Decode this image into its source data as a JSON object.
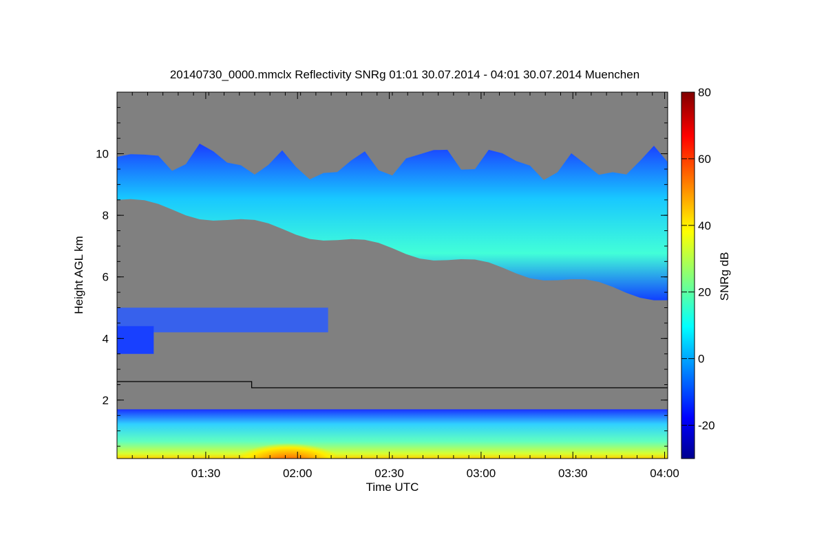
{
  "chart_data": {
    "type": "heatmap",
    "title": "20140730_0000.mmclx Reflectivity SNRg   01:01 30.07.2014 - 04:01 30.07.2014 Muenchen",
    "xlabel": "Time UTC",
    "ylabel": "Height AGL km",
    "xlim": [
      "01:01",
      "04:01"
    ],
    "ylim": [
      0.1,
      12.0
    ],
    "x_ticks": [
      "01:30",
      "02:00",
      "02:30",
      "03:00",
      "03:30",
      "04:00"
    ],
    "y_ticks": [
      2,
      4,
      6,
      8,
      10
    ],
    "missing_value_color": "#808080",
    "colorbar": {
      "label": "SNRg dB",
      "range": [
        -30,
        80
      ],
      "ticks": [
        -20,
        0,
        20,
        40,
        60,
        80
      ],
      "colormap": "jet"
    },
    "cloud_layers": [
      {
        "x_start": "01:01",
        "x_end": "04:01",
        "base_start_km": 8.5,
        "base_end_km": 5.3,
        "top_km": 10.2,
        "snr_range_db": [
          -20,
          30
        ]
      },
      {
        "x_start": "01:01",
        "x_end": "02:10",
        "base_km": 4.2,
        "top_km": 5.0,
        "snr_range_db": [
          -25,
          5
        ]
      },
      {
        "x_start": "01:01",
        "x_end": "01:13",
        "base_km": 3.5,
        "top_km": 4.4,
        "snr_range_db": [
          -25,
          0
        ]
      },
      {
        "x_start": "01:01",
        "x_end": "04:01",
        "base_km": 0.1,
        "top_km": 1.7,
        "snr_range_db": [
          -20,
          60
        ]
      }
    ],
    "boundary_line": [
      {
        "x": "01:01",
        "height_km": 2.6
      },
      {
        "x": "01:45",
        "height_km": 2.6
      },
      {
        "x": "01:45",
        "height_km": 2.4
      },
      {
        "x": "04:01",
        "height_km": 2.4
      }
    ]
  }
}
